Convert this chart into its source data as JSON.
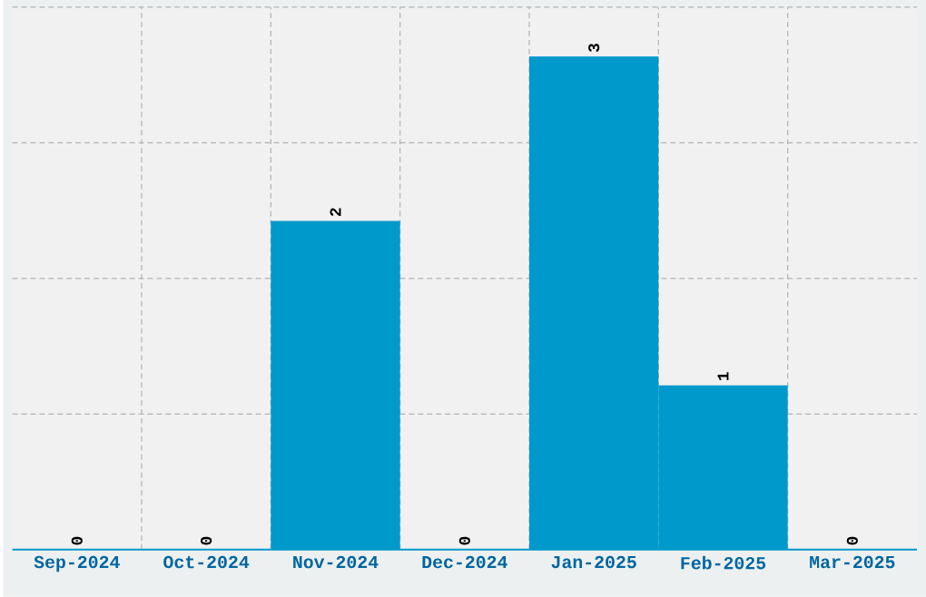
{
  "chart_data": {
    "type": "bar",
    "categories": [
      "Sep-2024",
      "Oct-2024",
      "Nov-2024",
      "Dec-2024",
      "Jan-2025",
      "Feb-2025",
      "Mar-2025"
    ],
    "values": [
      0,
      0,
      2,
      0,
      3,
      1,
      0
    ],
    "color": "#0099cc",
    "ylim": [
      0,
      3.3
    ],
    "yticks": [
      {
        "value": 0.825,
        "label": null
      },
      {
        "value": 1.65,
        "label": null
      },
      {
        "value": 2.475,
        "label": null
      },
      {
        "value": 3.3,
        "label": null
      }
    ],
    "tick_labels": "x",
    "grid": true,
    "data_labels": true
  }
}
